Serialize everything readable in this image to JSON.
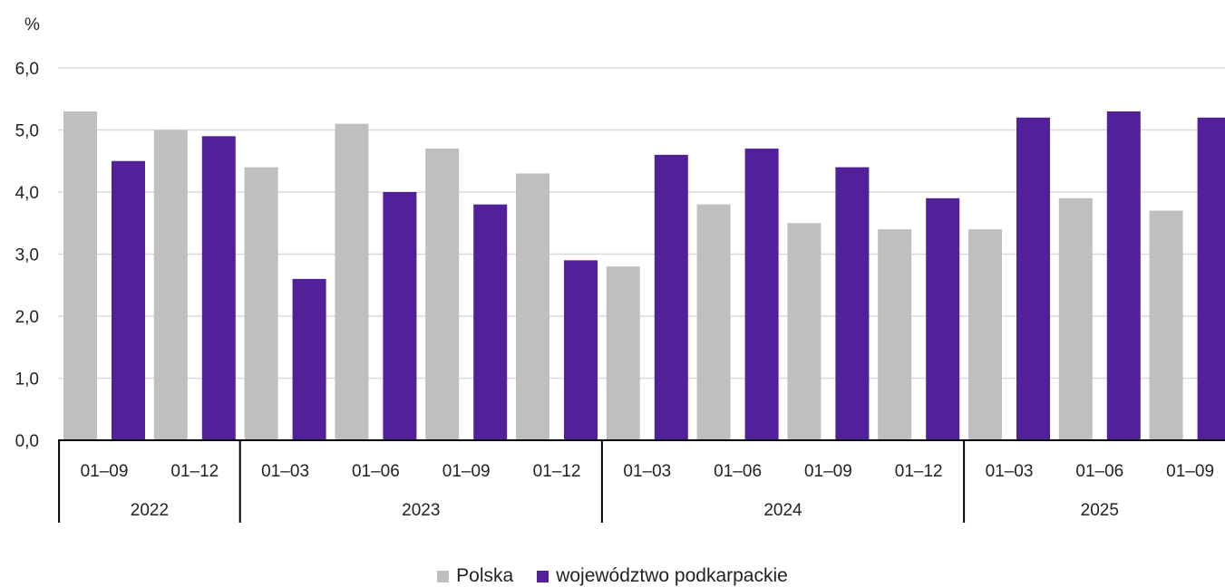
{
  "chart_data": {
    "type": "bar",
    "unit_label": "%",
    "ylim": [
      0,
      6
    ],
    "yticks": [
      "0,0",
      "1,0",
      "2,0",
      "3,0",
      "4,0",
      "5,0",
      "6,0"
    ],
    "grid": true,
    "categories": [
      "01–09",
      "01–12",
      "01–03",
      "01–06",
      "01–09",
      "01–12",
      "01–03",
      "01–06",
      "01–09",
      "01–12",
      "01–03",
      "01–06",
      "01–09"
    ],
    "year_groups": [
      {
        "label": "2022",
        "count": 2
      },
      {
        "label": "2023",
        "count": 4
      },
      {
        "label": "2024",
        "count": 4
      },
      {
        "label": "2025",
        "count": 3
      }
    ],
    "series": [
      {
        "name": "Polska",
        "color": "#bfbfbf",
        "values": [
          5.3,
          5.0,
          4.4,
          5.1,
          4.7,
          4.3,
          2.8,
          3.8,
          3.5,
          3.4,
          3.4,
          3.9,
          3.7
        ]
      },
      {
        "name": "województwo podkarpackie",
        "color": "#52219a",
        "values": [
          4.5,
          4.9,
          2.6,
          4.0,
          3.8,
          2.9,
          4.6,
          4.7,
          4.4,
          3.9,
          5.2,
          5.3,
          5.2
        ]
      }
    ],
    "legend_position": "bottom"
  }
}
